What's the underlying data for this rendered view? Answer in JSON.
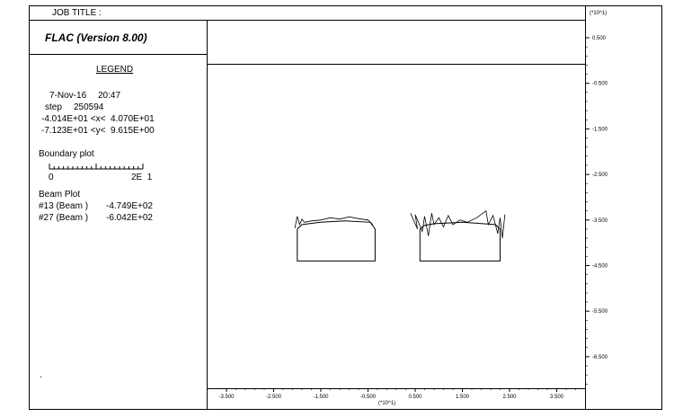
{
  "header": {
    "job_title_label": "JOB TITLE :",
    "scale_note": "(*10^1)"
  },
  "panel": {
    "app_title": "FLAC (Version 8.00)",
    "legend_title": "LEGEND",
    "date": "7-Nov-16",
    "time": "20:47",
    "step_label": "step",
    "step_value": "250594",
    "x_range": "-4.014E+01 <x<  4.070E+01",
    "y_range": "-7.123E+01 <y<  9.615E+00",
    "boundary_plot_label": "Boundary plot",
    "scale_start": "0",
    "scale_end": "2E  1",
    "beam_plot_label": "Beam Plot",
    "beams": [
      {
        "id": "#13 (Beam )",
        "value": "-4.749E+02"
      },
      {
        "id": "#27 (Beam )",
        "value": "-6.042E+02"
      }
    ],
    "footer_mark": "."
  },
  "chart_data": {
    "type": "line",
    "xlabel": "(*10^1)",
    "ylabel": "(*10^1)",
    "x_ticks": [
      "-3.500",
      "-2.500",
      "-1.500",
      "-0.500",
      "0.500",
      "1.500",
      "2.500",
      "3.500"
    ],
    "y_ticks": [
      "0.500",
      "-0.500",
      "-1.500",
      "-2.500",
      "-3.500",
      "-4.500",
      "-5.500",
      "-6.500"
    ],
    "xlim": [
      -4.014,
      4.07
    ],
    "ylim": [
      -7.123,
      0.9615
    ],
    "series": [
      {
        "name": "#13 (Beam )",
        "boundary": [
          [
            -2.0,
            -3.7
          ],
          [
            -2.0,
            -4.4
          ],
          [
            -0.35,
            -4.4
          ],
          [
            -0.35,
            -3.7
          ],
          [
            -0.45,
            -3.55
          ],
          [
            -1.0,
            -3.52
          ],
          [
            -1.5,
            -3.55
          ],
          [
            -1.9,
            -3.6
          ],
          [
            -2.0,
            -3.7
          ]
        ],
        "moment_trace": [
          [
            -2.05,
            -3.68
          ],
          [
            -2.0,
            -3.42
          ],
          [
            -1.95,
            -3.6
          ],
          [
            -1.9,
            -3.48
          ],
          [
            -1.85,
            -3.55
          ],
          [
            -1.7,
            -3.52
          ],
          [
            -1.5,
            -3.5
          ],
          [
            -1.3,
            -3.45
          ],
          [
            -1.1,
            -3.48
          ],
          [
            -0.9,
            -3.43
          ],
          [
            -0.7,
            -3.47
          ],
          [
            -0.5,
            -3.5
          ],
          [
            -0.4,
            -3.6
          ]
        ]
      },
      {
        "name": "#27 (Beam )",
        "boundary": [
          [
            0.6,
            -3.7
          ],
          [
            0.6,
            -4.4
          ],
          [
            2.3,
            -4.4
          ],
          [
            2.3,
            -3.7
          ],
          [
            2.2,
            -3.6
          ],
          [
            1.5,
            -3.55
          ],
          [
            0.9,
            -3.58
          ],
          [
            0.7,
            -3.62
          ],
          [
            0.6,
            -3.7
          ]
        ],
        "moment_trace": [
          [
            0.4,
            -3.35
          ],
          [
            0.55,
            -3.7
          ],
          [
            0.5,
            -3.38
          ],
          [
            0.65,
            -3.75
          ],
          [
            0.7,
            -3.42
          ],
          [
            0.78,
            -3.85
          ],
          [
            0.85,
            -3.35
          ],
          [
            0.9,
            -3.6
          ],
          [
            1.0,
            -3.45
          ],
          [
            1.1,
            -3.65
          ],
          [
            1.2,
            -3.4
          ],
          [
            1.3,
            -3.6
          ],
          [
            1.45,
            -3.5
          ],
          [
            1.6,
            -3.55
          ],
          [
            1.8,
            -3.45
          ],
          [
            2.0,
            -3.3
          ],
          [
            2.05,
            -3.6
          ],
          [
            2.15,
            -3.4
          ],
          [
            2.25,
            -3.8
          ],
          [
            2.3,
            -3.45
          ],
          [
            2.35,
            -3.9
          ],
          [
            2.4,
            -3.38
          ]
        ]
      }
    ],
    "grid": false
  }
}
